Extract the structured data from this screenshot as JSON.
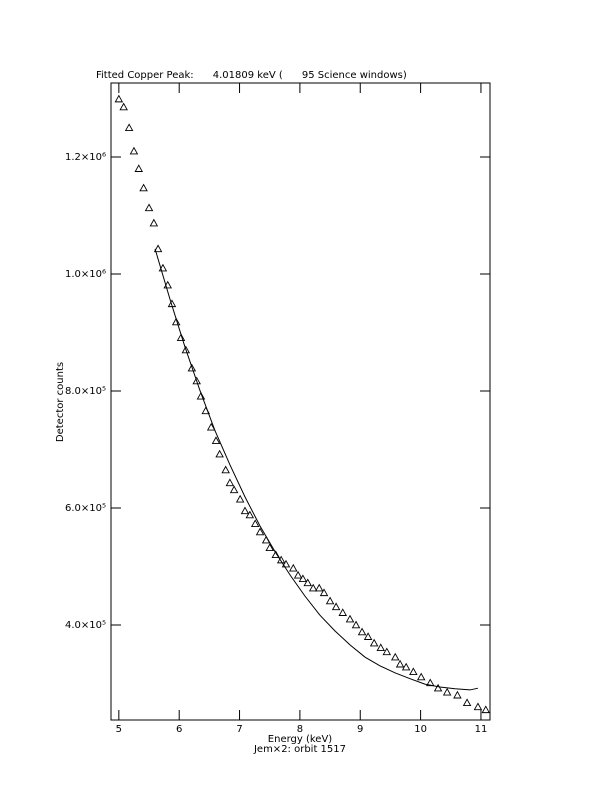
{
  "chart_data": {
    "type": "scatter",
    "title": "Fitted Copper Peak:      4.01809 keV (      95 Science windows)",
    "x_label": "Energy (keV)",
    "subtitle": "Jem×2: orbit 1517",
    "y_label": "Detector counts",
    "xlim": [
      4.87,
      11.15
    ],
    "ylim": [
      237600,
      1326500
    ],
    "xticks": [
      5,
      6,
      7,
      8,
      9,
      10,
      11
    ],
    "yticks": [
      {
        "value": 400000,
        "label": "4.0×10⁵"
      },
      {
        "value": 600000,
        "label": "6.0×10⁵"
      },
      {
        "value": 800000,
        "label": "8.0×10⁵"
      },
      {
        "value": 1000000,
        "label": "1.0×10⁶"
      },
      {
        "value": 1200000,
        "label": "1.2×10⁶"
      }
    ],
    "series": [
      {
        "style": "triangle",
        "color": "#000000",
        "x": [
          5.0,
          5.08,
          5.17,
          5.25,
          5.33,
          5.41,
          5.5,
          5.58,
          5.65,
          5.73,
          5.81,
          5.88,
          5.95,
          6.03,
          6.11,
          6.21,
          6.29,
          6.36,
          6.44,
          6.53,
          6.61,
          6.67,
          6.77,
          6.84,
          6.91,
          7.01,
          7.09,
          7.17,
          7.26,
          7.34,
          7.44,
          7.5,
          7.6,
          7.69,
          7.77,
          7.89,
          7.97,
          8.05,
          8.13,
          8.22,
          8.32,
          8.4,
          8.5,
          8.6,
          8.71,
          8.83,
          8.93,
          9.03,
          9.13,
          9.23,
          9.34,
          9.44,
          9.58,
          9.66,
          9.76,
          9.88,
          10.01,
          10.16,
          10.29,
          10.44,
          10.61,
          10.77,
          10.95,
          11.08
        ],
        "values": [
          1299000,
          1285500,
          1250000,
          1210000,
          1180000,
          1147000,
          1113000,
          1087000,
          1043000,
          1010000,
          981000,
          949000,
          918000,
          891000,
          870000,
          839000,
          817000,
          791000,
          766000,
          738000,
          715000,
          692000,
          665000,
          643000,
          631000,
          615000,
          595000,
          588000,
          573000,
          559000,
          545000,
          532000,
          520000,
          511000,
          504000,
          497000,
          485000,
          479000,
          472000,
          463000,
          463000,
          455000,
          441000,
          431000,
          421000,
          410000,
          400000,
          388000,
          380000,
          369000,
          361000,
          354000,
          345000,
          333000,
          328000,
          320000,
          311000,
          301000,
          292000,
          285000,
          280000,
          267000,
          260000,
          255000
        ]
      },
      {
        "style": "line",
        "color": "#000000",
        "x": [
          5.6,
          5.85,
          6.09,
          6.34,
          6.59,
          6.84,
          7.09,
          7.34,
          7.59,
          7.84,
          8.08,
          8.33,
          8.58,
          8.83,
          9.08,
          9.33,
          9.58,
          9.83,
          10.07,
          10.32,
          10.57,
          10.82,
          10.95
        ],
        "values": [
          1043000,
          956000,
          877000,
          802000,
          733000,
          674000,
          619000,
          569000,
          525000,
          485000,
          450000,
          417000,
          390000,
          366000,
          345000,
          330000,
          318000,
          308000,
          299000,
          294000,
          291000,
          289000,
          292000
        ]
      }
    ]
  }
}
